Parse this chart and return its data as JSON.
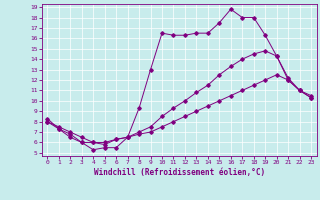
{
  "xlabel": "Windchill (Refroidissement éolien,°C)",
  "bg_color": "#c8ecec",
  "line_color": "#800080",
  "xlim": [
    -0.5,
    23.5
  ],
  "ylim": [
    4.7,
    19.3
  ],
  "xticks": [
    0,
    1,
    2,
    3,
    4,
    5,
    6,
    7,
    8,
    9,
    10,
    11,
    12,
    13,
    14,
    15,
    16,
    17,
    18,
    19,
    20,
    21,
    22,
    23
  ],
  "yticks": [
    5,
    6,
    7,
    8,
    9,
    10,
    11,
    12,
    13,
    14,
    15,
    16,
    17,
    18,
    19
  ],
  "curve1_x": [
    0,
    1,
    2,
    3,
    4,
    5,
    6,
    7,
    8,
    9,
    10,
    11,
    12,
    13,
    14,
    15,
    16,
    17,
    18,
    19,
    20,
    21,
    22,
    23
  ],
  "curve1_y": [
    8.3,
    7.3,
    6.5,
    6.0,
    5.3,
    5.5,
    5.5,
    6.5,
    9.3,
    13.0,
    16.5,
    16.3,
    16.3,
    16.5,
    16.5,
    17.5,
    18.8,
    18.0,
    18.0,
    16.3,
    14.3,
    12.2,
    11.0,
    10.5
  ],
  "curve2_x": [
    0,
    1,
    2,
    3,
    4,
    5,
    6,
    7,
    8,
    9,
    10,
    11,
    12,
    13,
    14,
    15,
    16,
    17,
    18,
    19,
    20,
    21,
    22,
    23
  ],
  "curve2_y": [
    8.0,
    7.3,
    6.8,
    6.0,
    6.0,
    5.8,
    6.3,
    6.5,
    7.0,
    7.5,
    8.5,
    9.3,
    10.0,
    10.8,
    11.5,
    12.5,
    13.3,
    14.0,
    14.5,
    14.8,
    14.3,
    12.0,
    11.0,
    10.3
  ],
  "curve3_x": [
    0,
    1,
    2,
    3,
    4,
    5,
    6,
    7,
    8,
    9,
    10,
    11,
    12,
    13,
    14,
    15,
    16,
    17,
    18,
    19,
    20,
    21,
    22,
    23
  ],
  "curve3_y": [
    8.0,
    7.5,
    7.0,
    6.5,
    6.0,
    6.0,
    6.3,
    6.5,
    6.8,
    7.0,
    7.5,
    8.0,
    8.5,
    9.0,
    9.5,
    10.0,
    10.5,
    11.0,
    11.5,
    12.0,
    12.5,
    12.0,
    11.0,
    10.3
  ]
}
